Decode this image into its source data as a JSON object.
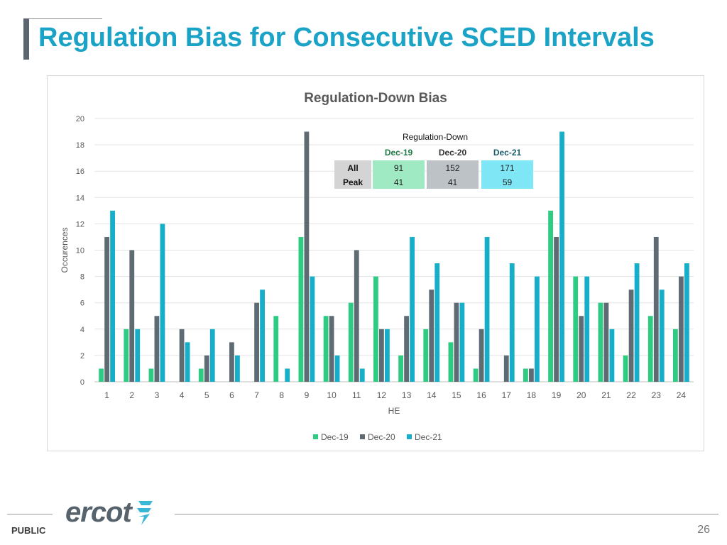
{
  "slide": {
    "title": "Regulation Bias for Consecutive SCED Intervals",
    "footer_label": "PUBLIC",
    "page_number": "26",
    "logo_text": "ercot"
  },
  "colors": {
    "title": "#1aa3c6",
    "dec19": "#2ecc83",
    "dec20": "#5f6b73",
    "dec21": "#16aec8"
  },
  "chart_data": {
    "type": "bar",
    "title": "Regulation-Down Bias",
    "xlabel": "HE",
    "ylabel": "Occurences",
    "ylim": [
      0,
      20
    ],
    "yticks": [
      0,
      2,
      4,
      6,
      8,
      10,
      12,
      14,
      16,
      18,
      20
    ],
    "grid": true,
    "legend_position": "bottom-center",
    "categories": [
      "1",
      "2",
      "3",
      "4",
      "5",
      "6",
      "7",
      "8",
      "9",
      "10",
      "11",
      "12",
      "13",
      "14",
      "15",
      "16",
      "17",
      "18",
      "19",
      "20",
      "21",
      "22",
      "23",
      "24"
    ],
    "series": [
      {
        "name": "Dec-19",
        "color": "#2ecc83",
        "values": [
          1,
          4,
          1,
          0,
          1,
          0,
          0,
          5,
          11,
          5,
          6,
          8,
          2,
          4,
          3,
          1,
          0,
          1,
          13,
          8,
          6,
          2,
          5,
          4
        ]
      },
      {
        "name": "Dec-20",
        "color": "#5f6b73",
        "values": [
          11,
          10,
          5,
          4,
          2,
          3,
          6,
          0,
          19,
          5,
          10,
          4,
          5,
          7,
          6,
          4,
          2,
          1,
          11,
          5,
          6,
          7,
          11,
          8
        ]
      },
      {
        "name": "Dec-21",
        "color": "#16aec8",
        "values": [
          13,
          4,
          12,
          3,
          4,
          2,
          7,
          1,
          8,
          2,
          1,
          4,
          11,
          9,
          6,
          11,
          9,
          8,
          19,
          8,
          4,
          9,
          7,
          9
        ]
      }
    ],
    "summary_table": {
      "title": "Regulation-Down",
      "columns": [
        "Dec-19",
        "Dec-20",
        "Dec-21"
      ],
      "column_colors": [
        "#9fe9c3",
        "#bcc2c6",
        "#7fe6f6"
      ],
      "header_colors": [
        "#1f7a46",
        "#333333",
        "#1a5b6b"
      ],
      "rows": [
        {
          "label": "All",
          "values": [
            "91",
            "152",
            "171"
          ]
        },
        {
          "label": "Peak",
          "values": [
            "41",
            "41",
            "59"
          ]
        }
      ]
    }
  }
}
